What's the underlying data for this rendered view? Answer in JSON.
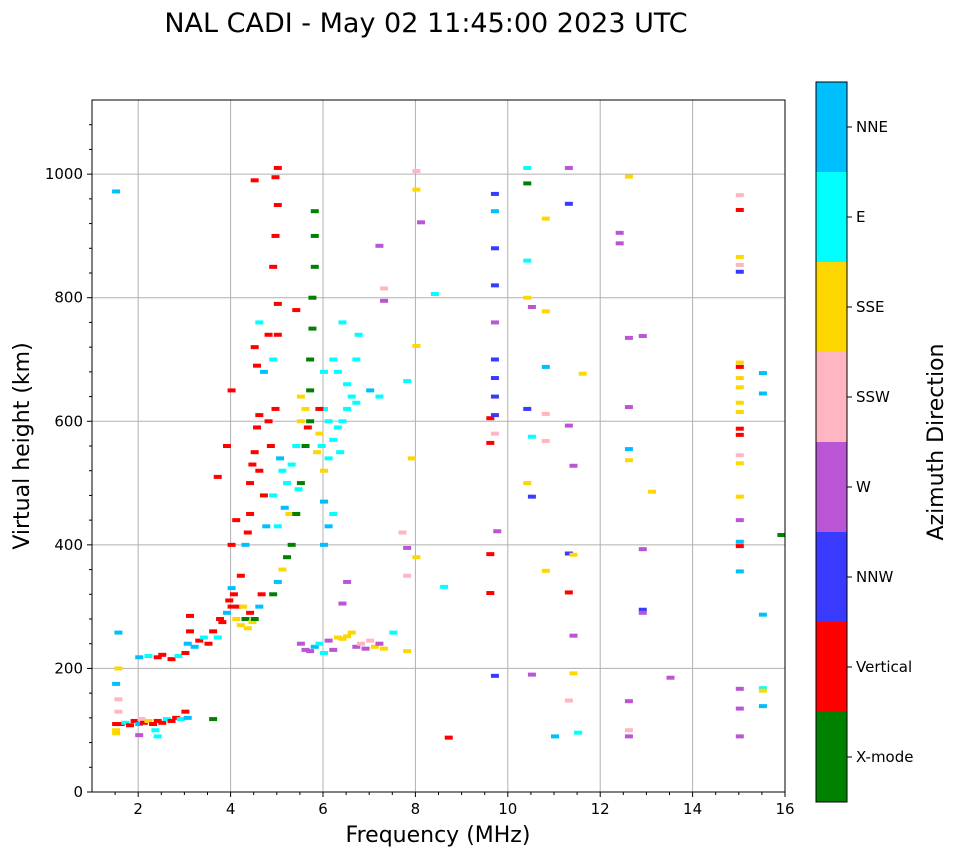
{
  "chart_data": {
    "type": "scatter",
    "title": "NAL CADI - May 02 11:45:00 2023 UTC",
    "xlabel": "Frequency (MHz)",
    "ylabel": "Virtual height (km)",
    "xlim": [
      1,
      16
    ],
    "ylim": [
      0,
      1120
    ],
    "xticks": [
      2,
      4,
      6,
      8,
      10,
      12,
      14,
      16
    ],
    "yticks": [
      0,
      200,
      400,
      600,
      800,
      1000
    ],
    "grid": true,
    "colorbar": {
      "label": "Azimuth Direction",
      "categories": [
        "X-mode",
        "Vertical",
        "NNW",
        "W",
        "SSW",
        "SSE",
        "E",
        "NNE"
      ],
      "colors": [
        "#008000",
        "#ff0000",
        "#3a3aff",
        "#ba55d3",
        "#ffb6c1",
        "#ffd700",
        "#00ffff",
        "#00bfff"
      ]
    },
    "point_format": [
      "frequency_MHz",
      "height_km",
      "category_index"
    ],
    "points": [
      [
        1.5,
        110,
        1
      ],
      [
        1.5,
        100,
        5
      ],
      [
        1.5,
        95,
        5
      ],
      [
        1.55,
        130,
        4
      ],
      [
        1.55,
        150,
        4
      ],
      [
        1.5,
        175,
        7
      ],
      [
        1.55,
        200,
        5
      ],
      [
        1.5,
        972,
        7
      ],
      [
        1.55,
        258,
        7
      ],
      [
        1.6,
        110,
        1
      ],
      [
        1.7,
        112,
        6
      ],
      [
        1.8,
        108,
        1
      ],
      [
        1.9,
        115,
        1
      ],
      [
        2.0,
        110,
        7
      ],
      [
        2.05,
        118,
        4
      ],
      [
        2.1,
        112,
        1
      ],
      [
        2.2,
        115,
        5
      ],
      [
        2.3,
        110,
        1
      ],
      [
        2.35,
        100,
        6
      ],
      [
        2.4,
        115,
        1
      ],
      [
        2.5,
        112,
        1
      ],
      [
        2.6,
        118,
        6
      ],
      [
        2.7,
        115,
        1
      ],
      [
        2.8,
        120,
        1
      ],
      [
        2.9,
        118,
        6
      ],
      [
        3.0,
        130,
        1
      ],
      [
        3.05,
        120,
        7
      ],
      [
        2.4,
        90,
        6
      ],
      [
        2.0,
        92,
        3
      ],
      [
        2.0,
        218,
        7
      ],
      [
        2.2,
        220,
        6
      ],
      [
        2.4,
        218,
        1
      ],
      [
        2.5,
        222,
        1
      ],
      [
        2.7,
        215,
        1
      ],
      [
        2.85,
        220,
        6
      ],
      [
        3.0,
        225,
        1
      ],
      [
        3.05,
        240,
        7
      ],
      [
        3.1,
        260,
        1
      ],
      [
        3.1,
        285,
        1
      ],
      [
        3.2,
        235,
        7
      ],
      [
        3.3,
        245,
        1
      ],
      [
        3.4,
        250,
        6
      ],
      [
        3.5,
        240,
        1
      ],
      [
        3.6,
        260,
        1
      ],
      [
        3.6,
        118,
        0
      ],
      [
        3.7,
        250,
        6
      ],
      [
        3.75,
        280,
        1
      ],
      [
        3.8,
        275,
        1
      ],
      [
        3.9,
        290,
        7
      ],
      [
        3.95,
        310,
        1
      ],
      [
        4.0,
        300,
        1
      ],
      [
        4.0,
        330,
        7
      ],
      [
        4.05,
        320,
        1
      ],
      [
        4.1,
        280,
        5
      ],
      [
        4.15,
        300,
        1
      ],
      [
        4.2,
        270,
        5
      ],
      [
        4.25,
        300,
        5
      ],
      [
        4.3,
        280,
        0
      ],
      [
        4.35,
        265,
        5
      ],
      [
        4.4,
        290,
        1
      ],
      [
        4.45,
        275,
        5
      ],
      [
        4.5,
        280,
        0
      ],
      [
        4.6,
        300,
        7
      ],
      [
        4.65,
        320,
        1
      ],
      [
        4.0,
        400,
        1
      ],
      [
        4.1,
        440,
        1
      ],
      [
        3.9,
        560,
        1
      ],
      [
        4.0,
        650,
        1
      ],
      [
        3.7,
        510,
        1
      ],
      [
        4.2,
        350,
        1
      ],
      [
        4.3,
        400,
        7
      ],
      [
        4.35,
        420,
        1
      ],
      [
        4.4,
        450,
        1
      ],
      [
        4.4,
        500,
        1
      ],
      [
        4.45,
        530,
        1
      ],
      [
        4.5,
        550,
        1
      ],
      [
        4.6,
        520,
        1
      ],
      [
        4.55,
        590,
        1
      ],
      [
        4.6,
        610,
        1
      ],
      [
        4.5,
        720,
        1
      ],
      [
        4.55,
        690,
        1
      ],
      [
        4.7,
        480,
        1
      ],
      [
        4.75,
        430,
        7
      ],
      [
        4.8,
        600,
        1
      ],
      [
        4.85,
        560,
        1
      ],
      [
        4.9,
        700,
        6
      ],
      [
        4.95,
        620,
        1
      ],
      [
        5.0,
        740,
        1
      ],
      [
        5.0,
        790,
        1
      ],
      [
        4.9,
        850,
        1
      ],
      [
        4.95,
        900,
        1
      ],
      [
        5.0,
        950,
        1
      ],
      [
        5.0,
        1010,
        1
      ],
      [
        4.5,
        990,
        1
      ],
      [
        4.95,
        995,
        1
      ],
      [
        4.6,
        760,
        6
      ],
      [
        4.8,
        740,
        1
      ],
      [
        4.7,
        680,
        7
      ],
      [
        5.05,
        540,
        7
      ],
      [
        4.9,
        480,
        6
      ],
      [
        5.0,
        430,
        6
      ],
      [
        5.1,
        520,
        6
      ],
      [
        5.15,
        460,
        7
      ],
      [
        5.2,
        500,
        6
      ],
      [
        5.25,
        450,
        5
      ],
      [
        5.3,
        530,
        6
      ],
      [
        5.4,
        560,
        6
      ],
      [
        5.5,
        600,
        5
      ],
      [
        5.5,
        640,
        5
      ],
      [
        5.45,
        490,
        6
      ],
      [
        5.6,
        620,
        5
      ],
      [
        5.65,
        590,
        1
      ],
      [
        5.7,
        650,
        0
      ],
      [
        5.7,
        700,
        0
      ],
      [
        5.75,
        750,
        0
      ],
      [
        5.75,
        800,
        0
      ],
      [
        5.8,
        850,
        0
      ],
      [
        5.8,
        900,
        0
      ],
      [
        5.8,
        940,
        0
      ],
      [
        5.7,
        600,
        0
      ],
      [
        5.6,
        560,
        0
      ],
      [
        5.5,
        500,
        0
      ],
      [
        5.4,
        450,
        0
      ],
      [
        5.3,
        400,
        0
      ],
      [
        5.2,
        380,
        0
      ],
      [
        5.1,
        360,
        5
      ],
      [
        5.0,
        340,
        7
      ],
      [
        4.9,
        320,
        0
      ],
      [
        5.4,
        780,
        1
      ],
      [
        5.9,
        580,
        5
      ],
      [
        5.95,
        560,
        6
      ],
      [
        6.0,
        620,
        6
      ],
      [
        6.1,
        600,
        6
      ],
      [
        6.1,
        540,
        6
      ],
      [
        6.2,
        570,
        6
      ],
      [
        6.3,
        590,
        6
      ],
      [
        6.35,
        550,
        6
      ],
      [
        6.4,
        600,
        6
      ],
      [
        6.5,
        620,
        6
      ],
      [
        6.5,
        660,
        6
      ],
      [
        6.6,
        640,
        6
      ],
      [
        6.7,
        630,
        6
      ],
      [
        6.7,
        700,
        6
      ],
      [
        6.75,
        740,
        6
      ],
      [
        6.4,
        760,
        6
      ],
      [
        6.2,
        700,
        6
      ],
      [
        6.3,
        680,
        6
      ],
      [
        6.0,
        520,
        5
      ],
      [
        6.1,
        430,
        7
      ],
      [
        6.0,
        470,
        7
      ],
      [
        6.2,
        450,
        6
      ],
      [
        6.0,
        400,
        7
      ],
      [
        5.85,
        550,
        5
      ],
      [
        5.9,
        620,
        1
      ],
      [
        6.0,
        680,
        6
      ],
      [
        5.5,
        240,
        3
      ],
      [
        5.6,
        230,
        3
      ],
      [
        5.7,
        228,
        3
      ],
      [
        5.8,
        235,
        7
      ],
      [
        5.9,
        240,
        6
      ],
      [
        6.0,
        225,
        6
      ],
      [
        6.1,
        245,
        3
      ],
      [
        6.2,
        230,
        3
      ],
      [
        6.3,
        250,
        5
      ],
      [
        6.4,
        248,
        5
      ],
      [
        6.5,
        252,
        5
      ],
      [
        6.6,
        258,
        5
      ],
      [
        6.7,
        235,
        3
      ],
      [
        6.8,
        240,
        4
      ],
      [
        6.9,
        232,
        3
      ],
      [
        7.0,
        245,
        4
      ],
      [
        7.1,
        235,
        5
      ],
      [
        7.2,
        240,
        3
      ],
      [
        7.3,
        232,
        5
      ],
      [
        7.5,
        258,
        6
      ],
      [
        7.8,
        228,
        5
      ],
      [
        6.5,
        340,
        3
      ],
      [
        6.4,
        305,
        3
      ],
      [
        7.0,
        650,
        7
      ],
      [
        7.2,
        640,
        6
      ],
      [
        7.2,
        884,
        3
      ],
      [
        7.3,
        795,
        3
      ],
      [
        7.3,
        815,
        4
      ],
      [
        7.8,
        665,
        6
      ],
      [
        7.9,
        540,
        5
      ],
      [
        8.0,
        1005,
        4
      ],
      [
        8.0,
        975,
        5
      ],
      [
        8.1,
        922,
        3
      ],
      [
        8.0,
        722,
        5
      ],
      [
        8.4,
        806,
        6
      ],
      [
        7.7,
        420,
        4
      ],
      [
        7.8,
        395,
        3
      ],
      [
        8.0,
        380,
        5
      ],
      [
        7.8,
        350,
        4
      ],
      [
        8.6,
        332,
        6
      ],
      [
        8.7,
        88,
        1
      ],
      [
        9.6,
        605,
        1
      ],
      [
        9.6,
        565,
        1
      ],
      [
        9.6,
        385,
        1
      ],
      [
        9.6,
        322,
        1
      ],
      [
        9.7,
        968,
        2
      ],
      [
        9.7,
        940,
        7
      ],
      [
        9.7,
        880,
        2
      ],
      [
        9.7,
        820,
        2
      ],
      [
        9.7,
        760,
        3
      ],
      [
        9.7,
        700,
        2
      ],
      [
        9.7,
        670,
        2
      ],
      [
        9.7,
        640,
        2
      ],
      [
        9.7,
        610,
        2
      ],
      [
        9.7,
        580,
        4
      ],
      [
        9.75,
        422,
        3
      ],
      [
        9.7,
        188,
        2
      ],
      [
        10.4,
        1010,
        6
      ],
      [
        10.4,
        985,
        0
      ],
      [
        10.4,
        860,
        6
      ],
      [
        10.4,
        800,
        5
      ],
      [
        10.4,
        620,
        2
      ],
      [
        10.4,
        500,
        5
      ],
      [
        10.5,
        785,
        3
      ],
      [
        10.5,
        575,
        6
      ],
      [
        10.5,
        478,
        2
      ],
      [
        10.5,
        190,
        3
      ],
      [
        10.8,
        928,
        5
      ],
      [
        10.8,
        778,
        5
      ],
      [
        10.8,
        688,
        7
      ],
      [
        10.8,
        612,
        4
      ],
      [
        10.8,
        568,
        4
      ],
      [
        10.8,
        358,
        5
      ],
      [
        11.0,
        90,
        7
      ],
      [
        11.3,
        1010,
        3
      ],
      [
        11.3,
        952,
        2
      ],
      [
        11.3,
        593,
        3
      ],
      [
        11.3,
        386,
        2
      ],
      [
        11.3,
        323,
        1
      ],
      [
        11.3,
        148,
        4
      ],
      [
        11.4,
        528,
        3
      ],
      [
        11.4,
        384,
        5
      ],
      [
        11.4,
        253,
        3
      ],
      [
        11.4,
        192,
        5
      ],
      [
        11.6,
        677,
        5
      ],
      [
        11.5,
        96,
        6
      ],
      [
        12.4,
        905,
        3
      ],
      [
        12.4,
        888,
        3
      ],
      [
        12.6,
        996,
        5
      ],
      [
        12.6,
        735,
        3
      ],
      [
        12.6,
        623,
        3
      ],
      [
        12.6,
        555,
        7
      ],
      [
        12.6,
        537,
        5
      ],
      [
        12.6,
        147,
        3
      ],
      [
        12.6,
        100,
        4
      ],
      [
        12.6,
        90,
        3
      ],
      [
        12.9,
        738,
        3
      ],
      [
        12.9,
        393,
        3
      ],
      [
        12.9,
        295,
        2
      ],
      [
        12.9,
        290,
        3
      ],
      [
        13.1,
        486,
        5
      ],
      [
        13.5,
        185,
        3
      ],
      [
        15.0,
        966,
        4
      ],
      [
        15.0,
        942,
        1
      ],
      [
        15.0,
        866,
        5
      ],
      [
        15.0,
        853,
        4
      ],
      [
        15.0,
        842,
        2
      ],
      [
        15.0,
        695,
        5
      ],
      [
        15.0,
        688,
        1
      ],
      [
        15.0,
        670,
        5
      ],
      [
        15.0,
        655,
        5
      ],
      [
        15.0,
        630,
        5
      ],
      [
        15.0,
        615,
        5
      ],
      [
        15.0,
        588,
        1
      ],
      [
        15.0,
        578,
        1
      ],
      [
        15.0,
        545,
        4
      ],
      [
        15.0,
        532,
        5
      ],
      [
        15.0,
        478,
        5
      ],
      [
        15.0,
        440,
        3
      ],
      [
        15.0,
        405,
        7
      ],
      [
        15.0,
        398,
        1
      ],
      [
        15.0,
        357,
        7
      ],
      [
        15.0,
        167,
        3
      ],
      [
        15.0,
        135,
        3
      ],
      [
        15.0,
        90,
        3
      ],
      [
        15.5,
        678,
        7
      ],
      [
        15.5,
        645,
        7
      ],
      [
        15.5,
        287,
        7
      ],
      [
        15.5,
        168,
        6
      ],
      [
        15.5,
        164,
        5
      ],
      [
        15.5,
        139,
        7
      ],
      [
        15.9,
        416,
        0
      ]
    ]
  }
}
